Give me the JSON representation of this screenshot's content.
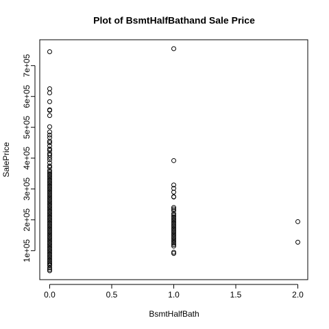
{
  "chart_data": {
    "type": "scatter",
    "title": "Plot of BsmtHalfBathand Sale Price",
    "x_label": "BsmtHalfBath",
    "y_label": "SalePrice",
    "xlim": [
      -0.08,
      2.08
    ],
    "ylim": [
      6096,
      783804
    ],
    "xticks": [
      {
        "value": 0,
        "label": "0.0"
      },
      0.5,
      {
        "value": 1,
        "label": "1.0"
      },
      1.5,
      {
        "value": 2,
        "label": "2.0"
      }
    ],
    "yticks": [
      {
        "value": 100000,
        "label": "1e+05"
      },
      {
        "value": 200000,
        "label": "2e+05"
      },
      {
        "value": 300000,
        "label": "3e+05"
      },
      {
        "value": 400000,
        "label": "4e+05"
      },
      {
        "value": 500000,
        "label": "5e+05"
      },
      {
        "value": 600000,
        "label": "6e+05"
      },
      {
        "value": 700000,
        "label": "7e+05"
      }
    ],
    "color": "#000000",
    "x": [
      0,
      0,
      0,
      0,
      0,
      0,
      0,
      0,
      0,
      0,
      0,
      0,
      0,
      0,
      0,
      0,
      0,
      0,
      0,
      0,
      0,
      0,
      0,
      0,
      0,
      0,
      0,
      0,
      0,
      0,
      0,
      0,
      0,
      0,
      0,
      0,
      0,
      0,
      0,
      0,
      0,
      0,
      0,
      0,
      0,
      0,
      0,
      0,
      0,
      0,
      0,
      0,
      0,
      0,
      0,
      0,
      0,
      0,
      0,
      0,
      0,
      0,
      0,
      0,
      0,
      0,
      0,
      0,
      0,
      0,
      0,
      0,
      0,
      0,
      0,
      0,
      0,
      0,
      0,
      0,
      0,
      0,
      0,
      0,
      0,
      0,
      0,
      0,
      0,
      1,
      1,
      1,
      1,
      1,
      1,
      1,
      1,
      1,
      1,
      1,
      1,
      1,
      1,
      1,
      1,
      1,
      1,
      1,
      1,
      1,
      1,
      1,
      1,
      1,
      1,
      1,
      1,
      1,
      1,
      1,
      1,
      1,
      1,
      2,
      2
    ],
    "values": [
      745000,
      625000,
      611657,
      582933,
      556581,
      555000,
      538000,
      501837,
      485000,
      475000,
      466500,
      455000,
      450000,
      440000,
      430000,
      424870,
      415298,
      410000,
      402000,
      395000,
      385000,
      375000,
      370000,
      360000,
      355000,
      350000,
      345000,
      340000,
      335000,
      330000,
      325000,
      320000,
      315000,
      310000,
      305000,
      300000,
      295000,
      290000,
      285000,
      280000,
      275000,
      270000,
      265000,
      260000,
      255000,
      250000,
      245000,
      240000,
      235000,
      230000,
      225000,
      220000,
      215000,
      210000,
      205000,
      200000,
      195000,
      190000,
      185000,
      180000,
      175000,
      170000,
      165000,
      160000,
      155000,
      150000,
      145000,
      140000,
      135000,
      130000,
      125000,
      120000,
      115000,
      110000,
      105000,
      100000,
      95000,
      90000,
      85000,
      80000,
      75000,
      70000,
      65000,
      60000,
      55000,
      52000,
      45000,
      39300,
      34900,
      755000,
      392000,
      313000,
      302000,
      290000,
      275000,
      274000,
      240000,
      235000,
      230000,
      220000,
      215000,
      210000,
      205000,
      200000,
      195000,
      190000,
      185000,
      180000,
      175000,
      170000,
      165000,
      160000,
      155000,
      150000,
      145000,
      140000,
      135000,
      130000,
      125000,
      120000,
      115000,
      95000,
      91000,
      194000,
      127500
    ]
  }
}
